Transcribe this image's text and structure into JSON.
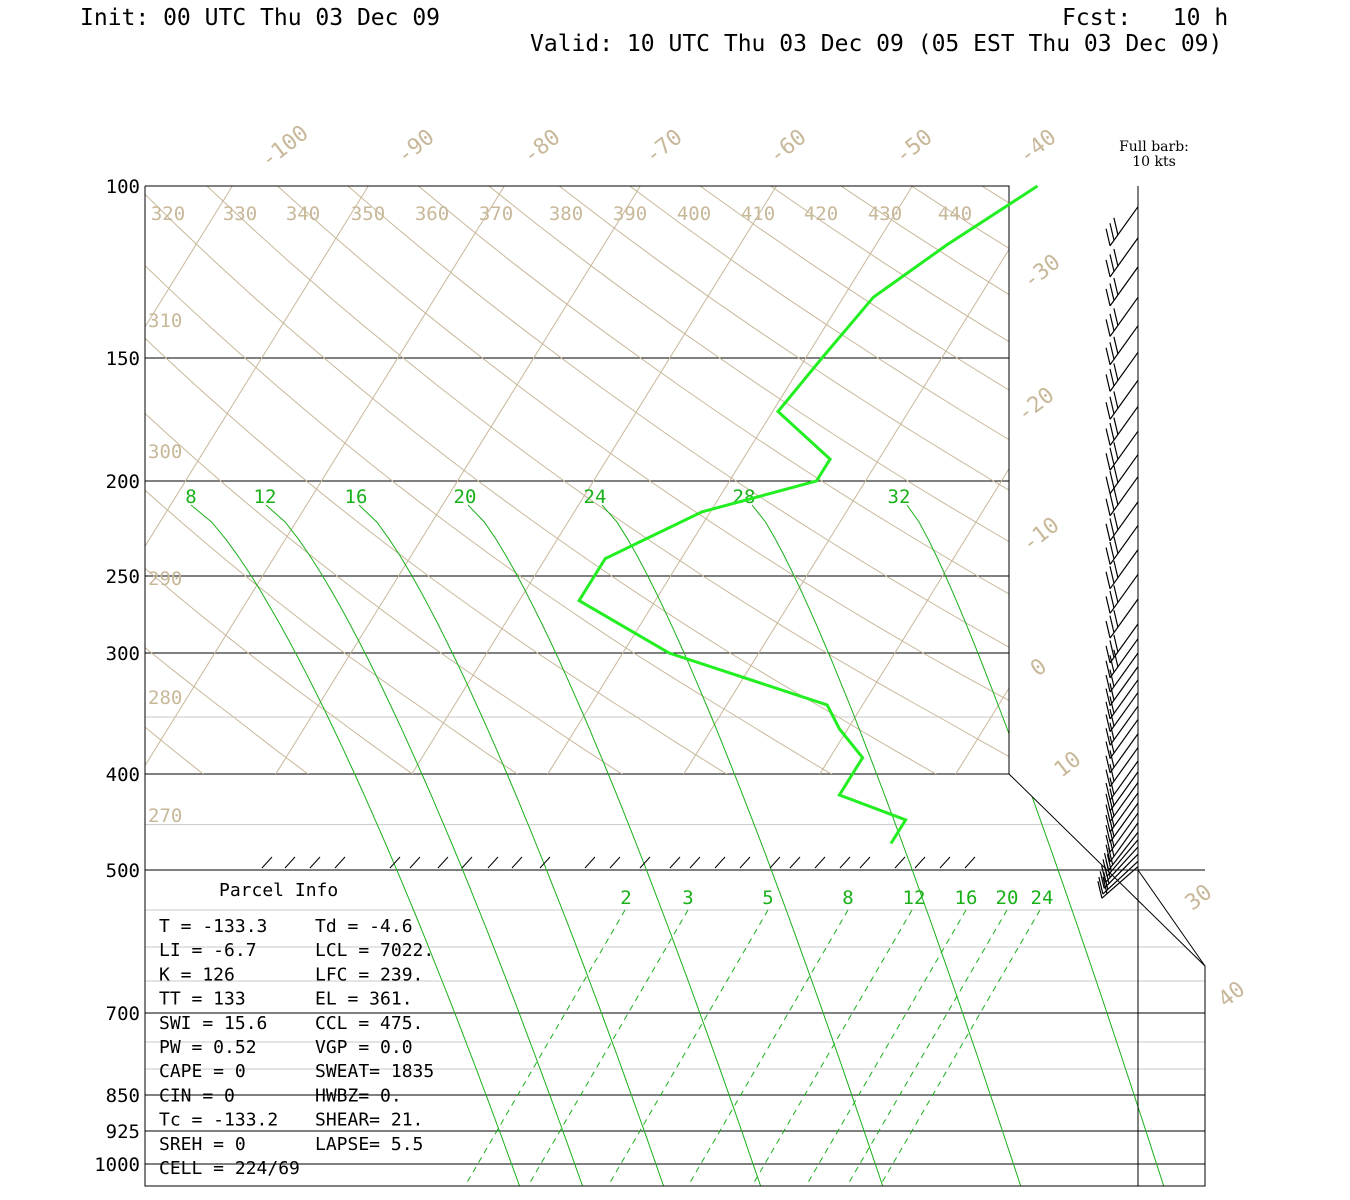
{
  "header": {
    "init": "Init: 00 UTC Thu 03 Dec 09",
    "fcst": "Fcst:   10 h",
    "valid": "Valid: 10 UTC Thu 03 Dec 09 (05 EST Thu 03 Dec 09)"
  },
  "chart_data": {
    "type": "line",
    "pressure_levels": [
      100,
      150,
      200,
      250,
      300,
      400,
      500,
      700,
      850,
      925,
      1000
    ],
    "isotherm_labels": [
      "-100",
      "-90",
      "-80",
      "-70",
      "-60",
      "-50",
      "-40",
      "-30",
      "-20",
      "-10",
      "0",
      "10",
      "30",
      "40"
    ],
    "dry_adiabat_top_labels": [
      "320",
      "330",
      "340",
      "350",
      "360",
      "370",
      "380",
      "390",
      "400",
      "410",
      "420",
      "430",
      "440"
    ],
    "dry_adiabat_left_labels": [
      "310",
      "300",
      "290",
      "280",
      "270"
    ],
    "moist_adiabat_labels": [
      "8",
      "12",
      "16",
      "20",
      "24",
      "28",
      "32"
    ],
    "mixing_ratio_labels": [
      "2",
      "3",
      "5",
      "8",
      "12",
      "16",
      "20",
      "24"
    ],
    "dewpoint_profile": {
      "p": [
        100,
        115,
        130,
        150,
        170,
        190,
        200,
        215,
        240,
        265,
        300,
        340,
        360,
        385,
        420,
        445,
        470
      ],
      "t": [
        -30.8,
        -34.8,
        -37.8,
        -38.8,
        -39.6,
        -33.6,
        -33.6,
        -40.6,
        -45.6,
        -45.6,
        -36.6,
        -22.6,
        -20.6,
        -17.6,
        -17.6,
        -11.6,
        -11.6
      ]
    },
    "wind_barb_note": [
      "Full barb:",
      "10 kts"
    ],
    "wind_barb_p": [
      105,
      113,
      121,
      130,
      139,
      148,
      158,
      168,
      178,
      188,
      198,
      210,
      222,
      235,
      249,
      264,
      280,
      290,
      300,
      310,
      320,
      330,
      341,
      352,
      364,
      376,
      388,
      398,
      408,
      418,
      428,
      438,
      448,
      458,
      466,
      474,
      482,
      490,
      496
    ],
    "parcel_info": {
      "title": "Parcel Info",
      "rows": [
        [
          "T  =  -133.3",
          "Td =   -4.6"
        ],
        [
          "LI =     -6.7",
          "LCL = 7022."
        ],
        [
          "K  =     126",
          "LFC =  239."
        ],
        [
          "TT =     133",
          "EL  =  361."
        ],
        [
          "SWI =   15.6",
          "CCL =  475."
        ],
        [
          "PW =    0.52",
          "VGP =   0.0"
        ],
        [
          "CAPE =     0",
          "SWEAT= 1835"
        ],
        [
          "CIN =      0",
          "HWBZ=    0."
        ],
        [
          "Tc =  -133.2",
          "SHEAR=  21."
        ],
        [
          "SREH =     0",
          "LAPSE=  5.5"
        ],
        [
          "CELL = 224/69",
          ""
        ]
      ]
    }
  },
  "colors": {
    "tan": "#c8b89a",
    "green": "#1ab01a",
    "dewpoint": "#22ee22",
    "black": "#000000"
  }
}
